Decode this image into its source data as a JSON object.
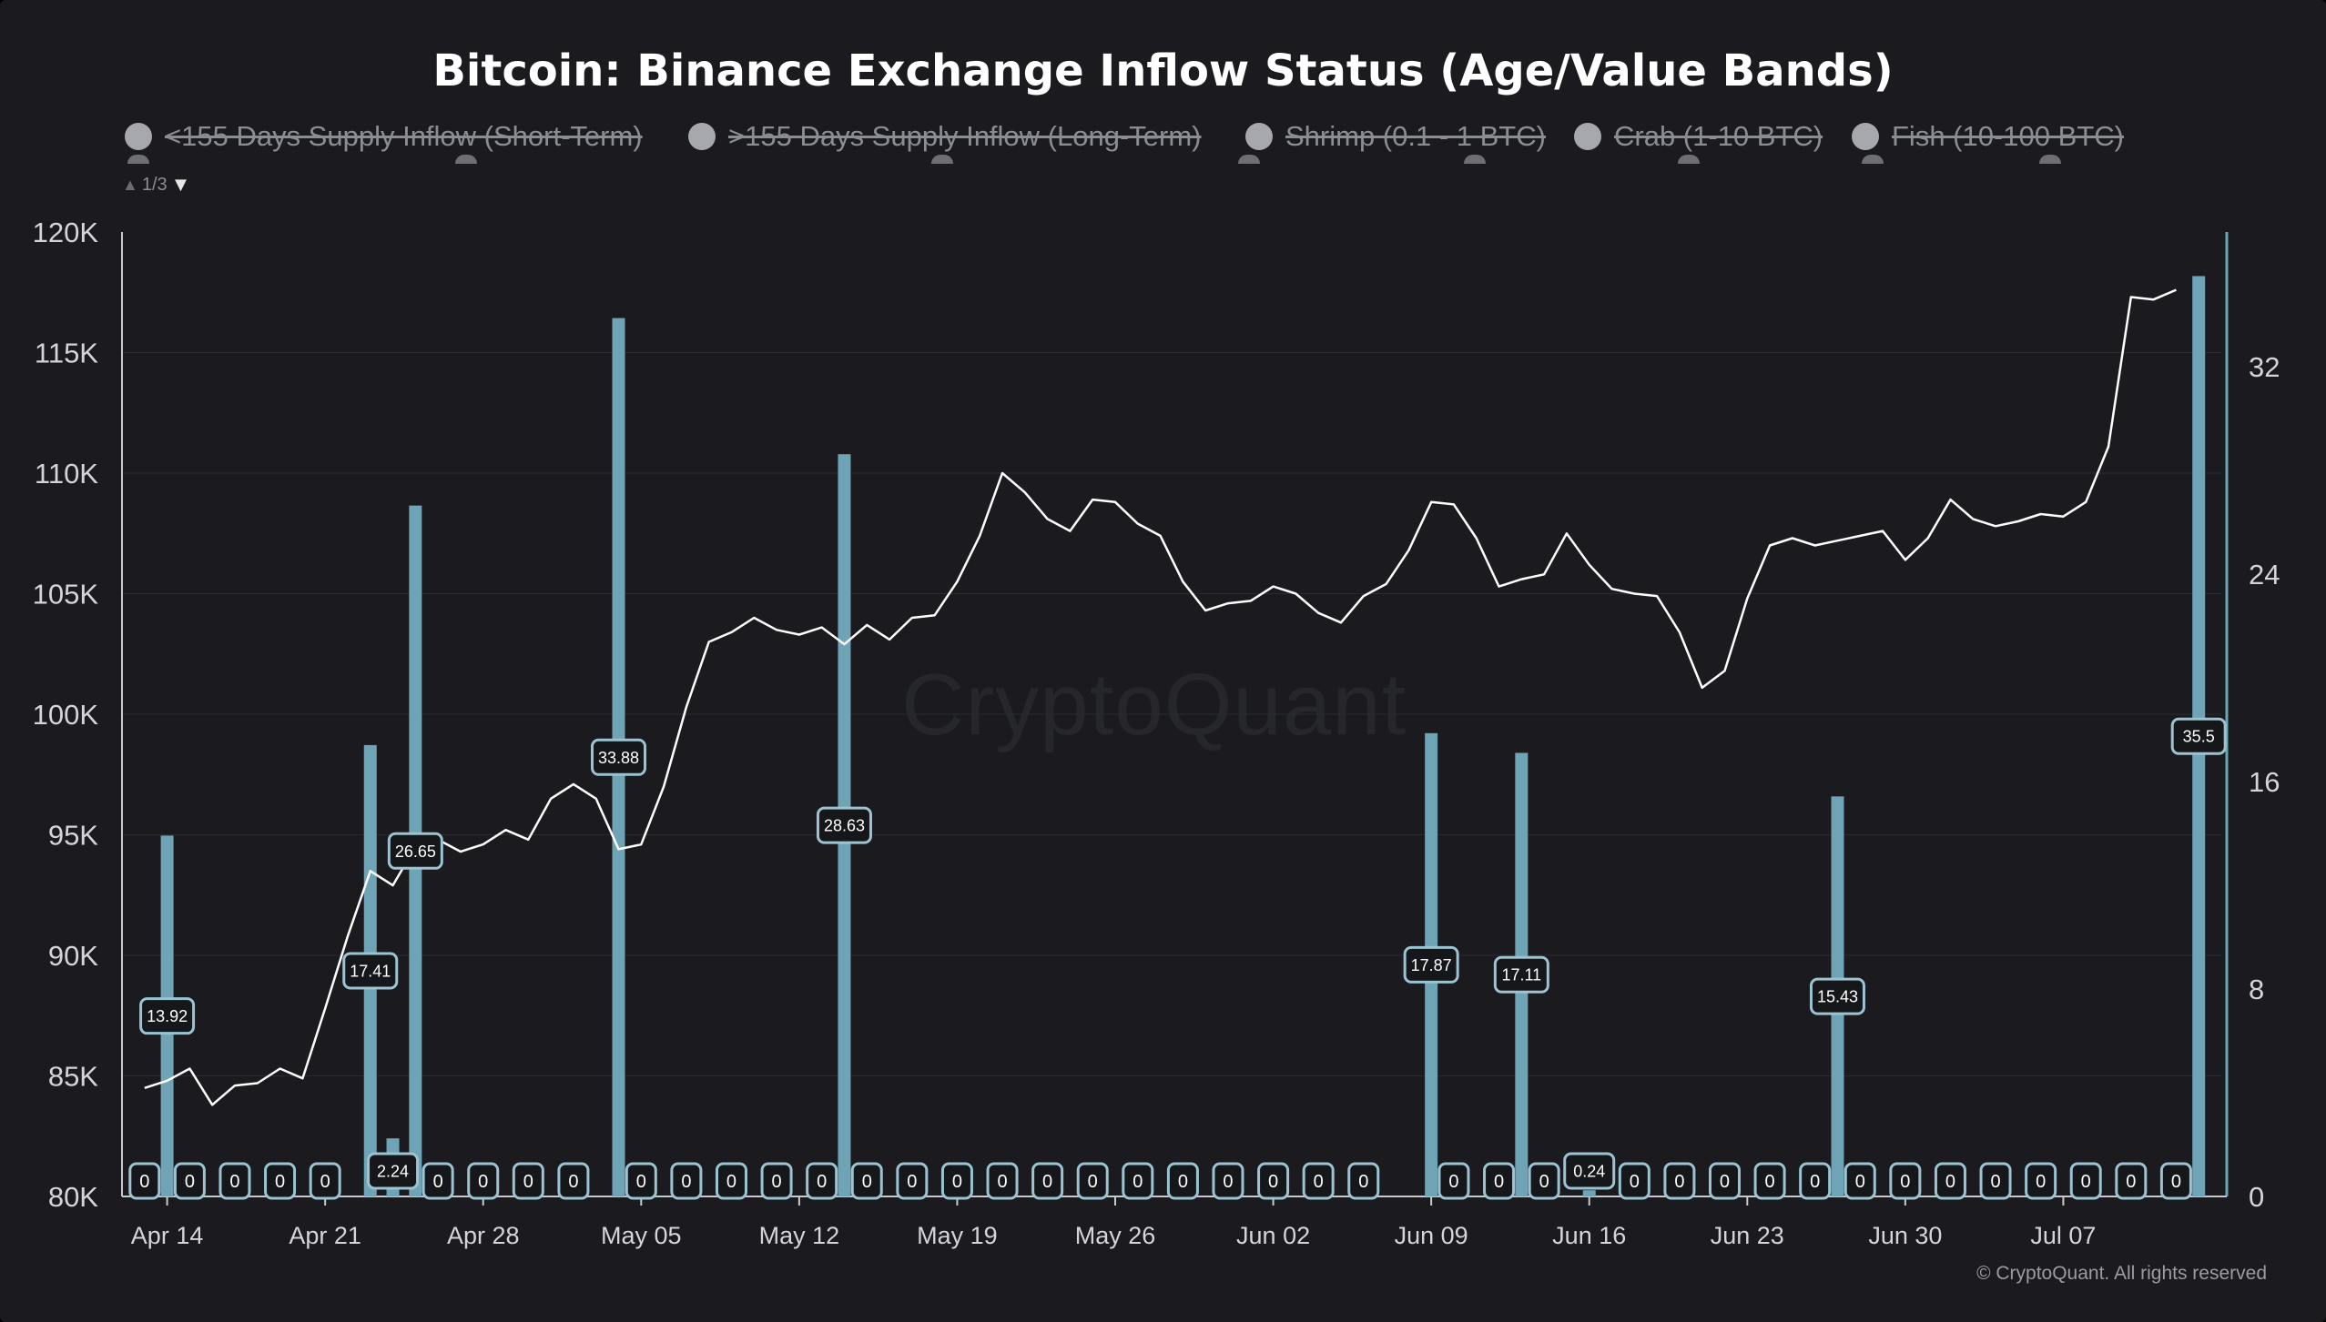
{
  "title": "Bitcoin: Binance Exchange Inflow Status (Age/Value Bands)",
  "legend": [
    {
      "label": "<155 Days Supply Inflow (Short-Term)",
      "hidden": true
    },
    {
      "label": ">155 Days Supply Inflow (Long-Term)",
      "hidden": true
    },
    {
      "label": "Shrimp (0.1 - 1 BTC)",
      "hidden": true
    },
    {
      "label": "Crab (1-10 BTC)",
      "hidden": true
    },
    {
      "label": "Fish (10-100 BTC)",
      "hidden": true
    }
  ],
  "legend_pager": "1/3",
  "watermark": "CryptoQuant",
  "copyright": "© CryptoQuant. All rights reserved",
  "colors": {
    "background": "#1b1b1f",
    "price_line": "#ffffff",
    "bars": "#6fa3b6",
    "grid": "#2a2b30",
    "axis_text": "#d4d5d8"
  },
  "chart_data": {
    "type": "bar+line",
    "x_tick_labels": [
      "Apr 14",
      "Apr 21",
      "Apr 28",
      "May 05",
      "May 12",
      "May 19",
      "May 26",
      "Jun 02",
      "Jun 09",
      "Jun 16",
      "Jun 23",
      "Jun 30",
      "Jul 07"
    ],
    "y_left": {
      "ticks": [
        "80K",
        "85K",
        "90K",
        "95K",
        "100K",
        "105K",
        "110K",
        "115K",
        "120K"
      ],
      "range": [
        80000,
        120000
      ]
    },
    "y_right": {
      "ticks": [
        "0",
        "8",
        "16",
        "24",
        "32"
      ],
      "range": [
        0,
        37.2
      ]
    },
    "x_range": [
      "2025-04-12",
      "2025-07-14"
    ],
    "inflow_bars": [
      {
        "date": "2025-04-13",
        "value": 0,
        "label": "0"
      },
      {
        "date": "2025-04-14",
        "value": 13.92,
        "label": "13.92"
      },
      {
        "date": "2025-04-15",
        "value": 0,
        "label": "0"
      },
      {
        "date": "2025-04-17",
        "value": 0,
        "label": "0"
      },
      {
        "date": "2025-04-19",
        "value": 0,
        "label": "0"
      },
      {
        "date": "2025-04-21",
        "value": 0,
        "label": "0"
      },
      {
        "date": "2025-04-23",
        "value": 17.41,
        "label": "17.41"
      },
      {
        "date": "2025-04-24",
        "value": 2.24,
        "label": "2.24"
      },
      {
        "date": "2025-04-25",
        "value": 26.65,
        "label": "26.65"
      },
      {
        "date": "2025-04-26",
        "value": 0,
        "label": "0"
      },
      {
        "date": "2025-04-28",
        "value": 0,
        "label": "0"
      },
      {
        "date": "2025-04-30",
        "value": 0,
        "label": "0"
      },
      {
        "date": "2025-05-02",
        "value": 0,
        "label": "0"
      },
      {
        "date": "2025-05-04",
        "value": 33.88,
        "label": "33.88"
      },
      {
        "date": "2025-05-05",
        "value": 0,
        "label": "0"
      },
      {
        "date": "2025-05-07",
        "value": 0,
        "label": "0"
      },
      {
        "date": "2025-05-09",
        "value": 0,
        "label": "0"
      },
      {
        "date": "2025-05-11",
        "value": 0,
        "label": "0"
      },
      {
        "date": "2025-05-13",
        "value": 0,
        "label": "0"
      },
      {
        "date": "2025-05-14",
        "value": 28.63,
        "label": "28.63"
      },
      {
        "date": "2025-05-15",
        "value": 0,
        "label": "0"
      },
      {
        "date": "2025-05-17",
        "value": 0,
        "label": "0"
      },
      {
        "date": "2025-05-19",
        "value": 0,
        "label": "0"
      },
      {
        "date": "2025-05-21",
        "value": 0,
        "label": "0"
      },
      {
        "date": "2025-05-23",
        "value": 0,
        "label": "0"
      },
      {
        "date": "2025-05-25",
        "value": 0,
        "label": "0"
      },
      {
        "date": "2025-05-27",
        "value": 0,
        "label": "0"
      },
      {
        "date": "2025-05-29",
        "value": 0,
        "label": "0"
      },
      {
        "date": "2025-05-31",
        "value": 0,
        "label": "0"
      },
      {
        "date": "2025-06-02",
        "value": 0,
        "label": "0"
      },
      {
        "date": "2025-06-04",
        "value": 0,
        "label": "0"
      },
      {
        "date": "2025-06-06",
        "value": 0,
        "label": "0"
      },
      {
        "date": "2025-06-09",
        "value": 17.87,
        "label": "17.87"
      },
      {
        "date": "2025-06-10",
        "value": 0,
        "label": "0"
      },
      {
        "date": "2025-06-12",
        "value": 0,
        "label": "0"
      },
      {
        "date": "2025-06-13",
        "value": 17.11,
        "label": "17.11"
      },
      {
        "date": "2025-06-14",
        "value": 0,
        "label": "0"
      },
      {
        "date": "2025-06-16",
        "value": 0.24,
        "label": "0.24"
      },
      {
        "date": "2025-06-18",
        "value": 0,
        "label": "0"
      },
      {
        "date": "2025-06-20",
        "value": 0,
        "label": "0"
      },
      {
        "date": "2025-06-22",
        "value": 0,
        "label": "0"
      },
      {
        "date": "2025-06-24",
        "value": 0,
        "label": "0"
      },
      {
        "date": "2025-06-26",
        "value": 0,
        "label": "0"
      },
      {
        "date": "2025-06-27",
        "value": 15.43,
        "label": "15.43"
      },
      {
        "date": "2025-06-28",
        "value": 0,
        "label": "0"
      },
      {
        "date": "2025-06-30",
        "value": 0,
        "label": "0"
      },
      {
        "date": "2025-07-02",
        "value": 0,
        "label": "0"
      },
      {
        "date": "2025-07-04",
        "value": 0,
        "label": "0"
      },
      {
        "date": "2025-07-06",
        "value": 0,
        "label": "0"
      },
      {
        "date": "2025-07-08",
        "value": 0,
        "label": "0"
      },
      {
        "date": "2025-07-10",
        "value": 0,
        "label": "0"
      },
      {
        "date": "2025-07-12",
        "value": 0,
        "label": "0"
      },
      {
        "date": "2025-07-13",
        "value": 35.5,
        "label": "35.5"
      }
    ],
    "price_line": {
      "start_date": "2025-04-13",
      "values": [
        84500,
        84800,
        85300,
        83800,
        84600,
        84700,
        85300,
        84900,
        87800,
        90800,
        93500,
        92900,
        94500,
        94800,
        94300,
        94600,
        95200,
        94800,
        96500,
        97100,
        96500,
        94400,
        94600,
        97000,
        100300,
        103000,
        103400,
        104000,
        103500,
        103300,
        103600,
        102900,
        103700,
        103100,
        104000,
        104100,
        105500,
        107400,
        110000,
        109200,
        108100,
        107600,
        108900,
        108800,
        107900,
        107400,
        105500,
        104300,
        104600,
        104700,
        105300,
        105000,
        104200,
        103800,
        104900,
        105400,
        106800,
        108800,
        108700,
        107300,
        105300,
        105600,
        105800,
        107500,
        106200,
        105200,
        105000,
        104900,
        103400,
        101100,
        101800,
        104800,
        107000,
        107300,
        107000,
        107200,
        107400,
        107600,
        106400,
        107300,
        108900,
        108100,
        107800,
        108000,
        108300,
        108200,
        108800,
        111100,
        117300,
        117200,
        117600
      ]
    }
  }
}
